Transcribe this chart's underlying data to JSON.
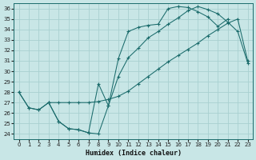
{
  "xlabel": "Humidex (Indice chaleur)",
  "bg_color": "#c8e6e6",
  "grid_color": "#a8d0d0",
  "line_color": "#1a6b6b",
  "xlim": [
    -0.5,
    23.5
  ],
  "ylim": [
    23.5,
    36.5
  ],
  "xticks": [
    0,
    1,
    2,
    3,
    4,
    5,
    6,
    7,
    8,
    9,
    10,
    11,
    12,
    13,
    14,
    15,
    16,
    17,
    18,
    19,
    20,
    21,
    22,
    23
  ],
  "yticks": [
    24,
    25,
    26,
    27,
    28,
    29,
    30,
    31,
    32,
    33,
    34,
    35,
    36
  ],
  "line1_x": [
    0,
    1,
    2,
    3,
    4,
    5,
    6,
    7,
    8,
    9,
    10,
    11,
    12,
    13,
    14,
    15,
    16,
    17,
    18,
    19,
    20,
    21
  ],
  "line1_y": [
    28.0,
    26.5,
    26.3,
    27.0,
    25.2,
    24.5,
    24.4,
    24.1,
    28.8,
    26.7,
    31.2,
    33.8,
    34.2,
    34.4,
    34.5,
    36.0,
    36.2,
    36.1,
    35.7,
    35.2,
    34.3,
    35.0
  ],
  "line2_x": [
    0,
    1,
    2,
    3,
    4,
    5,
    6,
    7,
    8,
    9,
    10,
    11,
    12,
    13,
    14,
    15,
    16,
    17,
    18,
    19,
    20,
    21,
    22,
    23
  ],
  "line2_y": [
    28.0,
    26.5,
    26.3,
    27.0,
    27.0,
    27.0,
    27.0,
    27.0,
    27.1,
    27.3,
    27.6,
    28.1,
    28.8,
    29.5,
    30.2,
    30.9,
    31.5,
    32.1,
    32.7,
    33.4,
    34.0,
    34.6,
    35.0,
    31.0
  ],
  "line3_x": [
    3,
    4,
    5,
    6,
    7,
    8,
    9,
    10,
    11,
    12,
    13,
    14,
    15,
    16,
    17,
    18,
    19,
    20,
    21,
    22,
    23
  ],
  "line3_y": [
    27.0,
    25.2,
    24.5,
    24.4,
    24.1,
    24.0,
    26.7,
    29.5,
    31.3,
    32.2,
    33.2,
    33.8,
    34.5,
    35.1,
    35.8,
    36.2,
    35.9,
    35.5,
    34.7,
    33.8,
    30.8
  ]
}
